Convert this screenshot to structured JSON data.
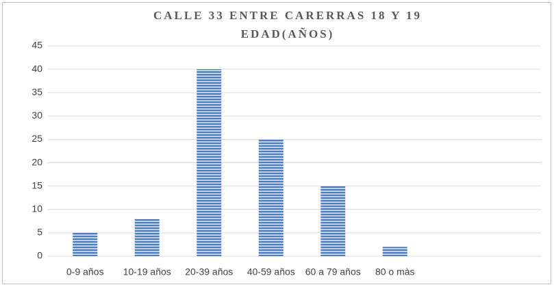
{
  "chart_data": {
    "type": "bar",
    "title": "CALLE 33 ENTRE CARERRAS 18 Y 19",
    "subtitle": "EDAD(AÑOS)",
    "categories": [
      "0-9 años",
      "10-19 años",
      "20-39 años",
      "40-59 años",
      "60 a 79 años",
      "80 o màs"
    ],
    "values": [
      5,
      8,
      40,
      25,
      15,
      2
    ],
    "color": "#4f7ec0",
    "ylim": [
      0,
      45
    ],
    "yticks": [
      0,
      5,
      10,
      15,
      20,
      25,
      30,
      35,
      40,
      45
    ],
    "grid": true
  }
}
